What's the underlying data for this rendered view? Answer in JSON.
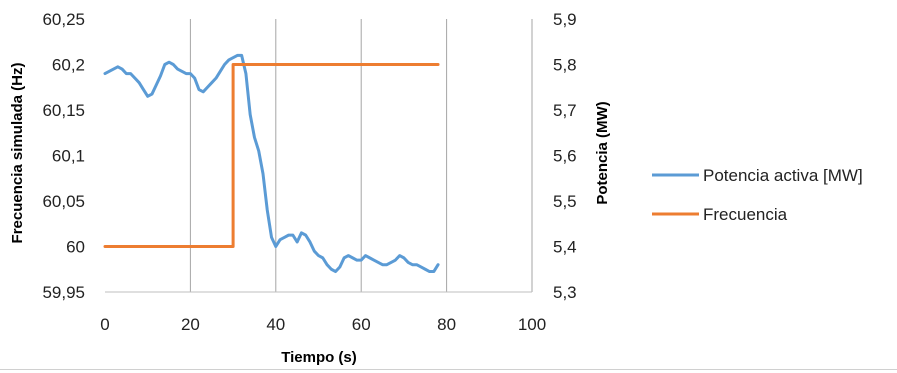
{
  "chart_data": {
    "type": "line",
    "x_axis": {
      "label": "Tiempo (s)",
      "range": [
        0,
        100
      ],
      "ticks": [
        0,
        20,
        40,
        60,
        80,
        100
      ],
      "tick_labels": [
        "0",
        "20",
        "40",
        "60",
        "80",
        "100"
      ]
    },
    "y_axis_left": {
      "label": "Frecuencia simulada (Hz)",
      "range": [
        59.95,
        60.25
      ],
      "ticks": [
        59.95,
        60,
        60.05,
        60.1,
        60.15,
        60.2,
        60.25
      ],
      "tick_labels": [
        "59,95",
        "60",
        "60,05",
        "60,1",
        "60,15",
        "60,2",
        "60,25"
      ]
    },
    "y_axis_right": {
      "label": "Potencia (MW)",
      "range": [
        5.3,
        5.9
      ],
      "ticks": [
        5.3,
        5.4,
        5.5,
        5.6,
        5.7,
        5.8,
        5.9
      ],
      "tick_labels": [
        "5,3",
        "5,4",
        "5,5",
        "5,6",
        "5,7",
        "5,8",
        "5,9"
      ]
    },
    "grid": "vertical",
    "legend_position": "right",
    "series": [
      {
        "name": "Potencia activa [MW]",
        "axis": "right",
        "color": "#5b9bd5",
        "x": [
          0,
          1,
          2,
          3,
          4,
          5,
          6,
          7,
          8,
          9,
          10,
          11,
          12,
          13,
          14,
          15,
          16,
          17,
          18,
          19,
          20,
          21,
          22,
          23,
          24,
          25,
          26,
          27,
          28,
          29,
          30,
          31,
          32,
          33,
          34,
          35,
          36,
          37,
          38,
          39,
          40,
          41,
          42,
          43,
          44,
          45,
          46,
          47,
          48,
          49,
          50,
          51,
          52,
          53,
          54,
          55,
          56,
          57,
          58,
          59,
          60,
          61,
          62,
          63,
          64,
          65,
          66,
          67,
          68,
          69,
          70,
          71,
          72,
          73,
          74,
          75,
          76,
          77,
          78
        ],
        "y": [
          5.78,
          5.785,
          5.79,
          5.795,
          5.79,
          5.78,
          5.78,
          5.77,
          5.76,
          5.745,
          5.73,
          5.735,
          5.755,
          5.775,
          5.8,
          5.805,
          5.8,
          5.79,
          5.785,
          5.78,
          5.78,
          5.77,
          5.745,
          5.74,
          5.75,
          5.76,
          5.77,
          5.785,
          5.8,
          5.81,
          5.815,
          5.82,
          5.82,
          5.78,
          5.69,
          5.64,
          5.61,
          5.56,
          5.48,
          5.42,
          5.4,
          5.415,
          5.42,
          5.425,
          5.425,
          5.41,
          5.43,
          5.425,
          5.41,
          5.39,
          5.38,
          5.375,
          5.36,
          5.35,
          5.345,
          5.355,
          5.375,
          5.38,
          5.375,
          5.37,
          5.37,
          5.38,
          5.375,
          5.37,
          5.365,
          5.36,
          5.36,
          5.365,
          5.37,
          5.38,
          5.375,
          5.365,
          5.36,
          5.36,
          5.355,
          5.35,
          5.345,
          5.345,
          5.36
        ]
      },
      {
        "name": "Frecuencia",
        "axis": "left",
        "color": "#ed7d31",
        "x": [
          0,
          30,
          30,
          78
        ],
        "y": [
          60,
          60,
          60.2,
          60.2
        ]
      }
    ]
  }
}
